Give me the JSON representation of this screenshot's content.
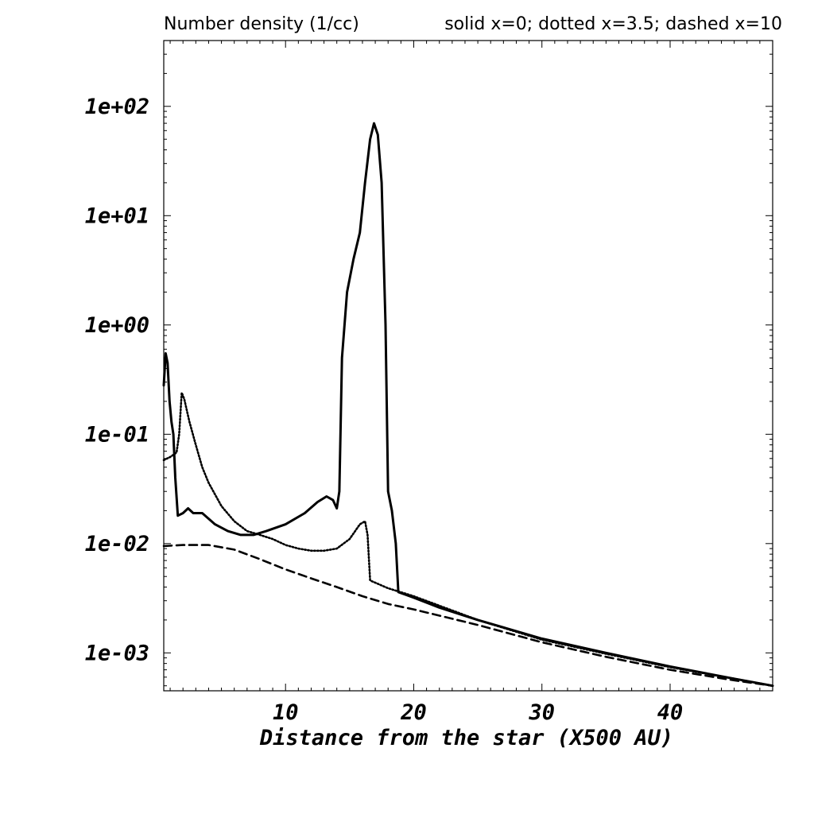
{
  "chart_data": {
    "type": "line",
    "title": "Number density (1/cc)",
    "subtitle": "solid x=0; dotted x=3.5; dashed x=10",
    "xlabel": "Distance from the star (X500 AU)",
    "ylabel": "",
    "yscale": "log",
    "xlim": [
      0.5,
      48
    ],
    "ylim": [
      0.00045,
      400
    ],
    "grid": false,
    "xticks": [
      10,
      20,
      30,
      40
    ],
    "xtick_labels": [
      "10",
      "20",
      "30",
      "40"
    ],
    "yticks": [
      0.001,
      0.01,
      0.1,
      1,
      10,
      100
    ],
    "ytick_labels": [
      "1e-03",
      "1e-02",
      "1e-01",
      "1e+00",
      "1e+01",
      "1e+02"
    ],
    "series": [
      {
        "style": "solid",
        "points": [
          [
            0.5,
            0.28
          ],
          [
            0.65,
            0.55
          ],
          [
            0.8,
            0.45
          ],
          [
            0.95,
            0.2
          ],
          [
            1.1,
            0.13
          ],
          [
            1.25,
            0.1
          ],
          [
            1.4,
            0.04
          ],
          [
            1.6,
            0.018
          ],
          [
            2.0,
            0.019
          ],
          [
            2.4,
            0.021
          ],
          [
            2.8,
            0.019
          ],
          [
            3.5,
            0.019
          ],
          [
            4.5,
            0.015
          ],
          [
            5.5,
            0.013
          ],
          [
            6.5,
            0.012
          ],
          [
            7.5,
            0.012
          ],
          [
            8.5,
            0.013
          ],
          [
            10.0,
            0.015
          ],
          [
            11.5,
            0.019
          ],
          [
            12.5,
            0.024
          ],
          [
            13.2,
            0.027
          ],
          [
            13.7,
            0.025
          ],
          [
            14.0,
            0.021
          ],
          [
            14.2,
            0.03
          ],
          [
            14.4,
            0.5
          ],
          [
            14.8,
            2.0
          ],
          [
            15.3,
            4.0
          ],
          [
            15.8,
            7.0
          ],
          [
            16.2,
            20.0
          ],
          [
            16.6,
            50.0
          ],
          [
            16.9,
            70.0
          ],
          [
            17.2,
            55.0
          ],
          [
            17.5,
            20.0
          ],
          [
            17.8,
            1.0
          ],
          [
            18.0,
            0.03
          ],
          [
            18.3,
            0.02
          ],
          [
            18.6,
            0.01
          ],
          [
            18.8,
            0.0036
          ],
          [
            20.0,
            0.0032
          ],
          [
            22.0,
            0.0026
          ],
          [
            25.0,
            0.002
          ],
          [
            30.0,
            0.00135
          ],
          [
            35.0,
            0.001
          ],
          [
            40.0,
            0.00075
          ],
          [
            45.0,
            0.00058
          ],
          [
            48.0,
            0.0005
          ]
        ]
      },
      {
        "style": "dotted",
        "points": [
          [
            0.5,
            0.058
          ],
          [
            1.0,
            0.062
          ],
          [
            1.5,
            0.068
          ],
          [
            1.7,
            0.1
          ],
          [
            1.9,
            0.24
          ],
          [
            2.1,
            0.21
          ],
          [
            2.5,
            0.13
          ],
          [
            3.0,
            0.08
          ],
          [
            3.5,
            0.05
          ],
          [
            4.0,
            0.036
          ],
          [
            5.0,
            0.022
          ],
          [
            6.0,
            0.016
          ],
          [
            7.0,
            0.013
          ],
          [
            8.0,
            0.012
          ],
          [
            9.0,
            0.011
          ],
          [
            10.0,
            0.0097
          ],
          [
            11.0,
            0.009
          ],
          [
            12.0,
            0.0086
          ],
          [
            13.0,
            0.0086
          ],
          [
            14.0,
            0.009
          ],
          [
            15.0,
            0.011
          ],
          [
            15.8,
            0.015
          ],
          [
            16.2,
            0.016
          ],
          [
            16.4,
            0.012
          ],
          [
            16.6,
            0.0046
          ],
          [
            18.0,
            0.0039
          ],
          [
            20.0,
            0.0033
          ],
          [
            25.0,
            0.002
          ],
          [
            30.0,
            0.00132
          ],
          [
            35.0,
            0.00098
          ],
          [
            40.0,
            0.00074
          ],
          [
            45.0,
            0.00058
          ],
          [
            48.0,
            0.0005
          ]
        ]
      },
      {
        "style": "dashed",
        "points": [
          [
            0.5,
            0.0095
          ],
          [
            2.0,
            0.0097
          ],
          [
            4.0,
            0.0097
          ],
          [
            6.0,
            0.0088
          ],
          [
            8.0,
            0.0072
          ],
          [
            10.0,
            0.0058
          ],
          [
            12.0,
            0.0048
          ],
          [
            14.0,
            0.004
          ],
          [
            16.0,
            0.0033
          ],
          [
            18.0,
            0.0028
          ],
          [
            20.0,
            0.0025
          ],
          [
            25.0,
            0.0018
          ],
          [
            30.0,
            0.00125
          ],
          [
            35.0,
            0.00092
          ],
          [
            40.0,
            0.0007
          ],
          [
            45.0,
            0.00056
          ],
          [
            48.0,
            0.0005
          ]
        ]
      }
    ]
  }
}
